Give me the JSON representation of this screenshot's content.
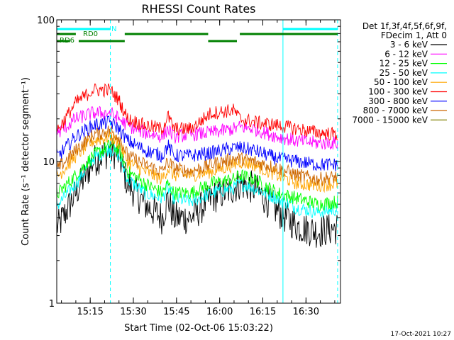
{
  "chart_data": {
    "type": "line",
    "title": "RHESSI Count Rates",
    "xlabel": "Start Time (02-Oct-06 15:03:22)",
    "ylabel": "Count Rate (s⁻¹ detector segment⁻¹)",
    "y_scale": "log",
    "xlim": [
      "15:03:22",
      "16:42:00"
    ],
    "ylim": [
      1,
      100
    ],
    "x_ticks": [
      "15:15",
      "15:30",
      "15:45",
      "16:00",
      "16:15",
      "16:30"
    ],
    "y_ticks": [
      "1",
      "10",
      "100"
    ],
    "legend_header": [
      "Det 1f,3f,4f,5f,6f,9f,",
      "FDecim 1, Att 0"
    ],
    "legend_position": "right",
    "timestamp": "17-Oct-2021 10:27",
    "x": [
      "15:04",
      "15:10",
      "15:16",
      "15:22",
      "15:25",
      "15:28",
      "15:34",
      "15:40",
      "15:42",
      "15:44",
      "15:50",
      "15:57",
      "16:05",
      "16:07",
      "16:12",
      "16:20",
      "16:27",
      "16:34",
      "16:41"
    ],
    "series": [
      {
        "name": "3 - 6 keV",
        "color": "#000000",
        "values": [
          3.5,
          6.0,
          10.0,
          12.0,
          11.0,
          7.0,
          5.0,
          4.0,
          5.5,
          4.0,
          4.0,
          5.5,
          6.5,
          7.0,
          6.5,
          4.5,
          3.5,
          3.2,
          3.4
        ]
      },
      {
        "name": "6 - 12 keV",
        "color": "#ff00ff",
        "values": [
          16.0,
          20.0,
          22.0,
          22.0,
          20.0,
          18.0,
          16.0,
          15.0,
          17.0,
          15.0,
          15.5,
          16.0,
          17.0,
          17.5,
          17.0,
          15.0,
          14.0,
          13.5,
          13.5
        ]
      },
      {
        "name": "12 - 25 keV",
        "color": "#00ff00",
        "values": [
          6.0,
          8.0,
          11.0,
          13.0,
          12.0,
          8.5,
          7.0,
          6.0,
          7.0,
          6.0,
          6.0,
          7.0,
          7.5,
          8.0,
          7.5,
          6.0,
          5.5,
          5.0,
          5.2
        ]
      },
      {
        "name": "25 - 50 keV",
        "color": "#00ffff",
        "values": [
          5.0,
          7.0,
          10.5,
          12.5,
          11.0,
          7.5,
          6.0,
          5.5,
          6.5,
          5.5,
          5.2,
          6.0,
          6.5,
          7.0,
          6.5,
          5.5,
          4.7,
          4.4,
          4.6
        ]
      },
      {
        "name": "50 - 100 keV",
        "color": "#ffa500",
        "values": [
          8.0,
          11.0,
          14.0,
          15.0,
          13.5,
          10.0,
          8.5,
          7.5,
          9.0,
          8.0,
          8.0,
          8.5,
          9.5,
          10.0,
          9.5,
          8.0,
          7.0,
          6.8,
          7.0
        ]
      },
      {
        "name": "100 - 300 keV",
        "color": "#ff0000",
        "values": [
          17.0,
          26.0,
          32.0,
          32.0,
          27.0,
          20.0,
          18.0,
          17.0,
          21.0,
          17.0,
          17.0,
          22.0,
          23.0,
          20.0,
          19.0,
          18.0,
          17.0,
          16.0,
          15.5
        ]
      },
      {
        "name": "300 - 800 keV",
        "color": "#0000ff",
        "values": [
          11.0,
          15.0,
          18.0,
          19.0,
          17.0,
          14.0,
          12.0,
          11.0,
          13.0,
          11.0,
          11.0,
          11.5,
          12.5,
          12.5,
          12.0,
          10.5,
          10.0,
          9.5,
          9.5
        ]
      },
      {
        "name": "800 - 7000 keV",
        "color": "#cc6600",
        "values": [
          9.0,
          12.0,
          15.5,
          16.5,
          15.0,
          11.0,
          9.5,
          8.5,
          10.0,
          9.0,
          8.5,
          9.5,
          10.5,
          10.5,
          10.0,
          9.0,
          8.0,
          7.5,
          7.8
        ]
      },
      {
        "name": "7000 - 15000 keV",
        "color": "#808000",
        "values": [
          null,
          null,
          null,
          null,
          null,
          null,
          null,
          null,
          null,
          null,
          null,
          null,
          null,
          null,
          null,
          null,
          null,
          null,
          null
        ]
      }
    ],
    "annotations": {
      "flags": [
        {
          "label": "N",
          "color": "#00ffff",
          "segments": [
            [
              "15:03:22",
              "15:22"
            ],
            [
              "16:22",
              "16:41"
            ]
          ],
          "level": 1
        },
        {
          "label": "RD0",
          "color": "#008000",
          "segments": [
            [
              "15:03:22",
              "15:10"
            ],
            [
              "15:27",
              "15:56"
            ],
            [
              "16:07",
              "16:41"
            ]
          ],
          "level": 2
        },
        {
          "label": "RD6",
          "color": "#008000",
          "segments": [
            [
              "15:03:22",
              "15:08"
            ],
            [
              "15:11",
              "15:27"
            ],
            [
              "15:56",
              "16:06"
            ]
          ],
          "level": 3
        }
      ],
      "vlines": [
        {
          "time": "15:03:22",
          "color": "#00ffff",
          "style": "solid"
        },
        {
          "time": "15:22",
          "color": "#00ffff",
          "style": "dashed"
        },
        {
          "time": "16:22",
          "color": "#00ffff",
          "style": "solid"
        },
        {
          "time": "16:41",
          "color": "#00ffff",
          "style": "dashed"
        }
      ]
    }
  }
}
